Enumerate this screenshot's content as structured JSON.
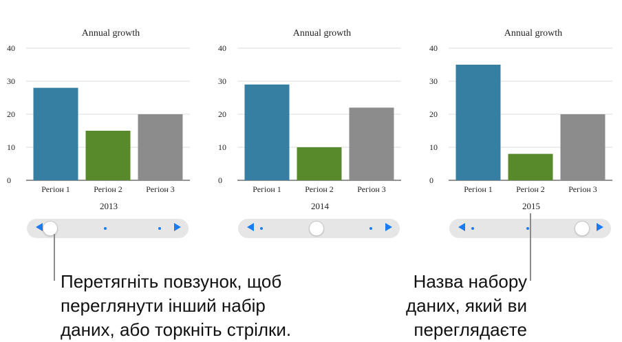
{
  "chart_data": [
    {
      "type": "bar",
      "title": "Annual growth",
      "categories": [
        "Регіон 1",
        "Регіон 2",
        "Регіон 3"
      ],
      "values": [
        28,
        15,
        20
      ],
      "colors": [
        "#367fa3",
        "#588a2c",
        "#8c8c8c"
      ],
      "ylim": [
        0,
        40
      ],
      "yticks": [
        "0",
        "10",
        "20",
        "30",
        "40"
      ],
      "xlabel": "2013",
      "grid": true
    },
    {
      "type": "bar",
      "title": "Annual growth",
      "categories": [
        "Регіон 1",
        "Регіон 2",
        "Регіон 3"
      ],
      "values": [
        29,
        10,
        22
      ],
      "colors": [
        "#367fa3",
        "#588a2c",
        "#8c8c8c"
      ],
      "ylim": [
        0,
        40
      ],
      "yticks": [
        "0",
        "10",
        "20",
        "30",
        "40"
      ],
      "xlabel": "2014",
      "grid": true
    },
    {
      "type": "bar",
      "title": "Annual growth",
      "categories": [
        "Регіон 1",
        "Регіон 2",
        "Регіон 3"
      ],
      "values": [
        35,
        8,
        20
      ],
      "colors": [
        "#367fa3",
        "#588a2c",
        "#8c8c8c"
      ],
      "ylim": [
        0,
        40
      ],
      "yticks": [
        "0",
        "10",
        "20",
        "30",
        "40"
      ],
      "xlabel": "2015",
      "grid": true
    }
  ],
  "sliders": [
    {
      "position": 0.0,
      "arrow_left": "left-arrow-icon",
      "arrow_right": "right-arrow-icon"
    },
    {
      "position": 0.5,
      "arrow_left": "left-arrow-icon",
      "arrow_right": "right-arrow-icon"
    },
    {
      "position": 1.0,
      "arrow_left": "left-arrow-icon",
      "arrow_right": "right-arrow-icon"
    }
  ],
  "captions": {
    "left": [
      "Перетягніть повзунок, щоб",
      "переглянути інший набір",
      "даних, або торкніть стрілки."
    ],
    "right": [
      "Назва набору",
      "даних, який ви",
      "переглядаєте"
    ]
  }
}
